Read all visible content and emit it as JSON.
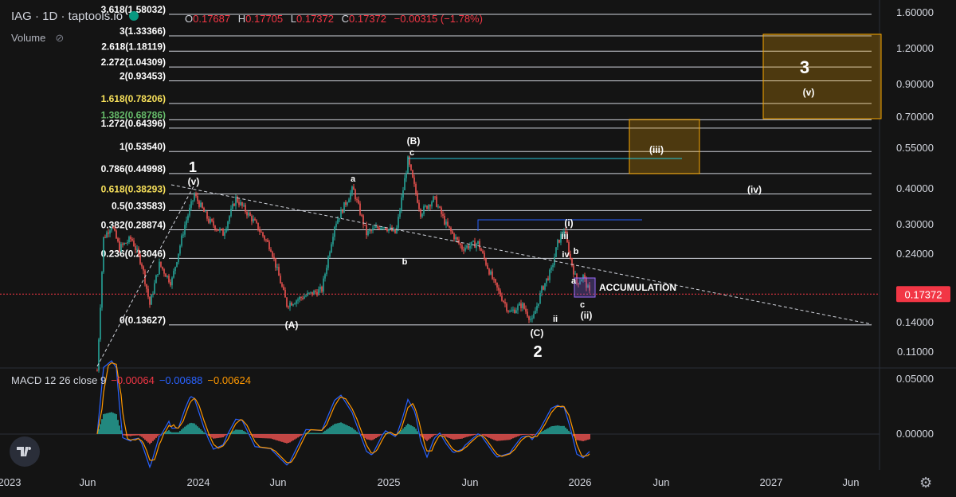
{
  "header": {
    "symbol": "IAG · 1D · taptools.io",
    "ohlc": [
      {
        "k": "O",
        "v": "0.17687"
      },
      {
        "k": "H",
        "v": "0.17705"
      },
      {
        "k": "L",
        "v": "0.17372"
      },
      {
        "k": "C",
        "v": "0.17372"
      }
    ],
    "change": "−0.00315 (−1.78%)",
    "volume_label": "Volume"
  },
  "macd_header": {
    "label": "MACD 12 26 close 9",
    "hist": "−0.00064",
    "macd": "−0.00688",
    "signal": "−0.00624"
  },
  "colors": {
    "background": "#141414",
    "up": "#26a69a",
    "down": "#ef5350",
    "macd_line": "#2962ff",
    "signal_line": "#ff9800",
    "price_tag": "#f23645",
    "box": "#f7a600"
  },
  "chart_data": {
    "type": "candlestick",
    "y_scale": "log",
    "price_axis": [
      "1.60000",
      "1.20000",
      "0.90000",
      "0.70000",
      "0.55000",
      "0.40000",
      "0.30000",
      "0.24000",
      "0.14000",
      "0.11000"
    ],
    "macd_axis": [
      "0.05000",
      "0.00000"
    ],
    "last_price": "0.17372",
    "x_axis": [
      "2023",
      "Jun",
      "2024",
      "Jun",
      "2025",
      "Jun",
      "2026",
      "Jun",
      "2027",
      "Jun"
    ],
    "fib_levels": [
      {
        "label": "3.618(1.58032)",
        "value": 1.58032
      },
      {
        "label": "3(1.33366)",
        "value": 1.33366
      },
      {
        "label": "2.618(1.18119)",
        "value": 1.18119
      },
      {
        "label": "2.272(1.04309)",
        "value": 1.04309
      },
      {
        "label": "2(0.93453)",
        "value": 0.93453
      },
      {
        "label": "1.618(0.78206)",
        "value": 0.78206,
        "color": "#f7e05a"
      },
      {
        "label": "1.382(0.68786)",
        "value": 0.68786,
        "color": "#66bb6a"
      },
      {
        "label": "1.272(0.64396)",
        "value": 0.64396
      },
      {
        "label": "1(0.53540)",
        "value": 0.5354
      },
      {
        "label": "0.786(0.44998)",
        "value": 0.44998
      },
      {
        "label": "0.618(0.38293)",
        "value": 0.38293,
        "color": "#f7e05a"
      },
      {
        "label": "0.5(0.33583)",
        "value": 0.33583
      },
      {
        "label": "0.382(0.28874)",
        "value": 0.28874
      },
      {
        "label": "0.236(0.23046)",
        "value": 0.23046
      },
      {
        "label": "0(0.13627)",
        "value": 0.13627
      }
    ],
    "wave_labels": [
      "1",
      "(v)",
      "(iii)",
      "(iv)",
      "a",
      "b",
      "(A)",
      "(B)",
      "c",
      "(C)",
      "2",
      "ii",
      "(i)",
      "iii",
      "iv",
      "a",
      "b",
      "c",
      "(ii)",
      "(iii)",
      "(iv)",
      "3",
      "(v)"
    ],
    "annotation": "ACCUMULATION"
  }
}
